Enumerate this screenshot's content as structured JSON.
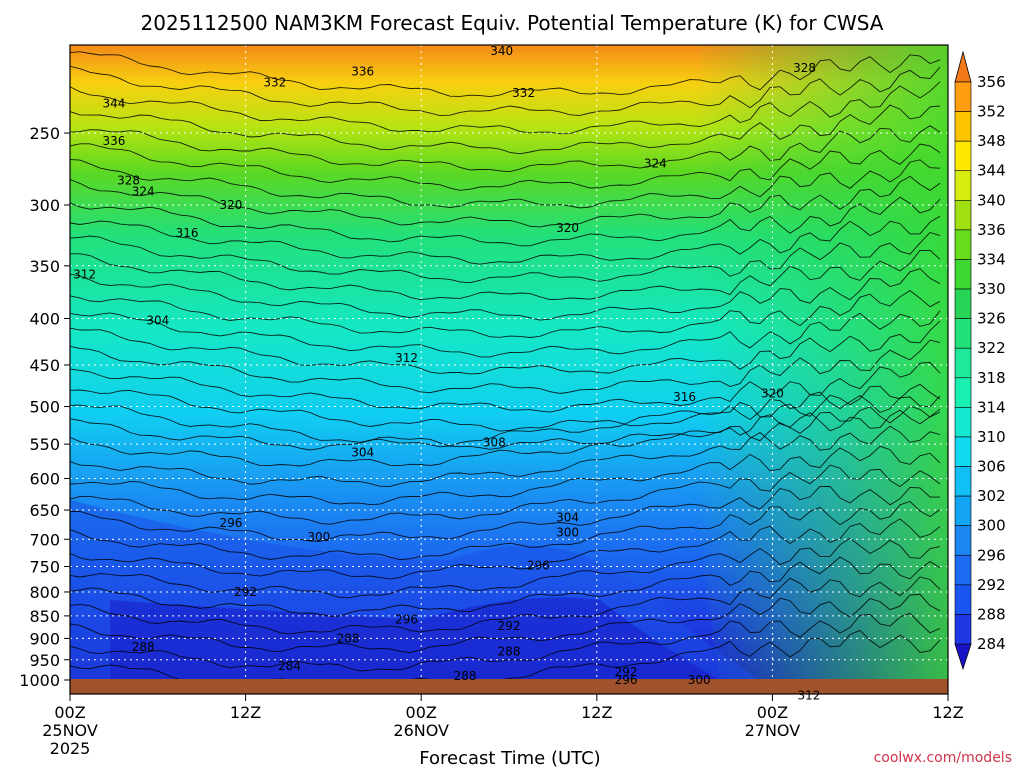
{
  "chart_data": {
    "type": "heatmap",
    "title": "2025112500 NAM3KM Forecast Equiv. Potential Temperature (K) for CWSA",
    "xlabel": "Forecast Time (UTC)",
    "ylabel": "",
    "x_range_hours": [
      0,
      60
    ],
    "y_range_hpa": [
      200,
      1000
    ],
    "y_scale": "log-pressure",
    "x_ticks": [
      {
        "hour": 0,
        "line1": "00Z",
        "line2": "25NOV",
        "line3": "2025"
      },
      {
        "hour": 12,
        "line1": "12Z",
        "line2": "",
        "line3": ""
      },
      {
        "hour": 24,
        "line1": "00Z",
        "line2": "26NOV",
        "line3": ""
      },
      {
        "hour": 36,
        "line1": "12Z",
        "line2": "",
        "line3": ""
      },
      {
        "hour": 48,
        "line1": "00Z",
        "line2": "27NOV",
        "line3": ""
      },
      {
        "hour": 60,
        "line1": "12Z",
        "line2": "",
        "line3": ""
      }
    ],
    "y_ticks": [
      "250",
      "300",
      "350",
      "400",
      "450",
      "500",
      "550",
      "600",
      "650",
      "700",
      "750",
      "800",
      "850",
      "900",
      "950",
      "1000"
    ],
    "colorbar": {
      "levels": [
        "284",
        "288",
        "292",
        "296",
        "300",
        "302",
        "306",
        "310",
        "314",
        "318",
        "322",
        "326",
        "330",
        "334",
        "336",
        "340",
        "344",
        "348",
        "352",
        "356"
      ],
      "colors": [
        "#1a14c8",
        "#1f38e6",
        "#1a55f0",
        "#1c6af0",
        "#1b86f2",
        "#14a4f4",
        "#10c0f4",
        "#10d9f0",
        "#14e8d0",
        "#18f0b0",
        "#1ee89a",
        "#22e07a",
        "#28d455",
        "#3cd830",
        "#66dc1a",
        "#a0e010",
        "#d8ec10",
        "#ffe800",
        "#ffc400",
        "#ff9c10",
        "#f27a18"
      ]
    },
    "contour_labels": [
      {
        "value": "340",
        "hour": 29.5,
        "p": 203
      },
      {
        "value": "328",
        "hour": 50.2,
        "p": 212
      },
      {
        "value": "336",
        "hour": 20.0,
        "p": 214
      },
      {
        "value": "332",
        "hour": 14.0,
        "p": 220
      },
      {
        "value": "332",
        "hour": 31.0,
        "p": 226
      },
      {
        "value": "344",
        "hour": 3.0,
        "p": 232
      },
      {
        "value": "336",
        "hour": 3.0,
        "p": 255
      },
      {
        "value": "324",
        "hour": 40.0,
        "p": 270
      },
      {
        "value": "328",
        "hour": 4.0,
        "p": 282
      },
      {
        "value": "324",
        "hour": 5.0,
        "p": 290
      },
      {
        "value": "320",
        "hour": 11.0,
        "p": 300
      },
      {
        "value": "320",
        "hour": 34.0,
        "p": 318
      },
      {
        "value": "316",
        "hour": 8.0,
        "p": 322
      },
      {
        "value": "312",
        "hour": 1.0,
        "p": 358
      },
      {
        "value": "304",
        "hour": 6.0,
        "p": 402
      },
      {
        "value": "312",
        "hour": 23.0,
        "p": 442
      },
      {
        "value": "316",
        "hour": 42.0,
        "p": 488
      },
      {
        "value": "320",
        "hour": 48.0,
        "p": 484
      },
      {
        "value": "308",
        "hour": 29.0,
        "p": 548
      },
      {
        "value": "304",
        "hour": 20.0,
        "p": 562
      },
      {
        "value": "304",
        "hour": 34.0,
        "p": 662
      },
      {
        "value": "300",
        "hour": 34.0,
        "p": 688
      },
      {
        "value": "296",
        "hour": 11.0,
        "p": 672
      },
      {
        "value": "300",
        "hour": 17.0,
        "p": 696
      },
      {
        "value": "296",
        "hour": 32.0,
        "p": 748
      },
      {
        "value": "292",
        "hour": 12.0,
        "p": 800
      },
      {
        "value": "296",
        "hour": 23.0,
        "p": 858
      },
      {
        "value": "292",
        "hour": 30.0,
        "p": 872
      },
      {
        "value": "288",
        "hour": 19.0,
        "p": 900
      },
      {
        "value": "288",
        "hour": 30.0,
        "p": 930
      },
      {
        "value": "288",
        "hour": 5.0,
        "p": 920
      },
      {
        "value": "284",
        "hour": 15.0,
        "p": 965
      },
      {
        "value": "288",
        "hour": 27.0,
        "p": 990
      },
      {
        "value": "292",
        "hour": 38.0,
        "p": 980
      },
      {
        "value": "296",
        "hour": 38.0,
        "p": 1000
      },
      {
        "value": "300",
        "hour": 43.0,
        "p": 1000
      },
      {
        "value": "312",
        "hour": 50.5,
        "p": 1040
      }
    ]
  },
  "watermark": "coolwx.com/models"
}
